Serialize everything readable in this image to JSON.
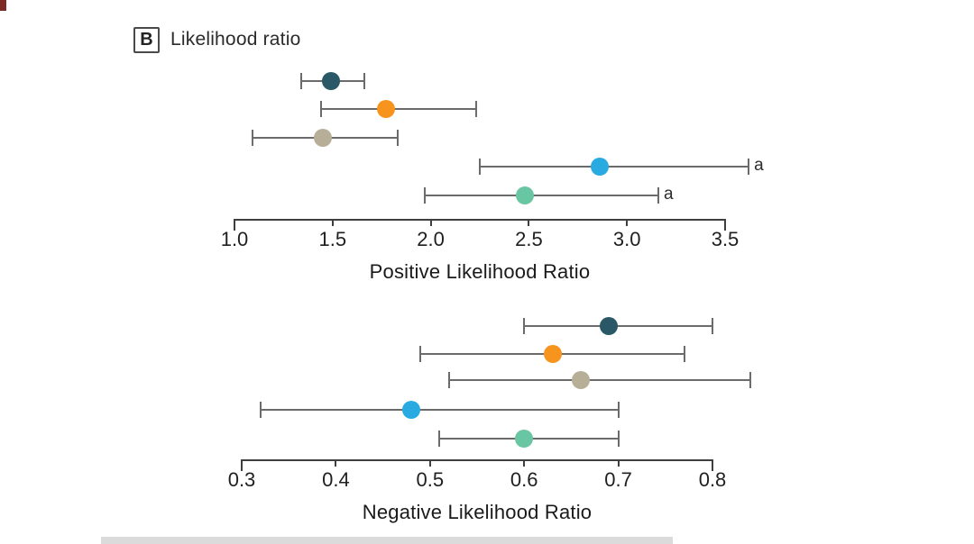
{
  "panel": {
    "tag": "B",
    "title": "Likelihood ratio"
  },
  "styles": {
    "background": "#ffffff",
    "ci_line_color": "#6b6b6b",
    "axis_color": "#3f3f3f",
    "text_color": "#1f1f1f",
    "corner_artifact_color": "#7e2b25",
    "bottom_band_color": "#dbdbdb"
  },
  "chart_data": [
    {
      "type": "scatter",
      "subtype": "forest-dot-ci",
      "xlabel": "Positive Likelihood Ratio",
      "xlim": [
        1.0,
        3.5
      ],
      "xticks": [
        1.0,
        1.5,
        2.0,
        2.5,
        3.0,
        3.5
      ],
      "xtick_labels": [
        "1.0",
        "1.5",
        "2.0",
        "2.5",
        "3.0",
        "3.5"
      ],
      "grid": false,
      "legend": "none",
      "series": [
        {
          "name": "dark-blue",
          "color": "#2A5866",
          "value": 1.49,
          "ci_low": 1.34,
          "ci_high": 1.66,
          "annotation": ""
        },
        {
          "name": "orange",
          "color": "#F7941E",
          "value": 1.77,
          "ci_low": 1.44,
          "ci_high": 2.23,
          "annotation": ""
        },
        {
          "name": "tan",
          "color": "#B7AE98",
          "value": 1.45,
          "ci_low": 1.09,
          "ci_high": 1.83,
          "annotation": ""
        },
        {
          "name": "light-blue",
          "color": "#29ABE2",
          "value": 2.86,
          "ci_low": 2.25,
          "ci_high": 3.62,
          "annotation": "a"
        },
        {
          "name": "green",
          "color": "#69C6A2",
          "value": 2.48,
          "ci_low": 1.97,
          "ci_high": 3.16,
          "annotation": "a"
        }
      ]
    },
    {
      "type": "scatter",
      "subtype": "forest-dot-ci",
      "xlabel": "Negative Likelihood Ratio",
      "xlim": [
        0.3,
        0.8
      ],
      "xticks": [
        0.3,
        0.4,
        0.5,
        0.6,
        0.7,
        0.8
      ],
      "xtick_labels": [
        "0.3",
        "0.4",
        "0.5",
        "0.6",
        "0.7",
        "0.8"
      ],
      "grid": false,
      "legend": "none",
      "series": [
        {
          "name": "dark-blue",
          "color": "#2A5866",
          "value": 0.69,
          "ci_low": 0.6,
          "ci_high": 0.8,
          "annotation": ""
        },
        {
          "name": "orange",
          "color": "#F7941E",
          "value": 0.63,
          "ci_low": 0.49,
          "ci_high": 0.77,
          "annotation": ""
        },
        {
          "name": "tan",
          "color": "#B7AE98",
          "value": 0.66,
          "ci_low": 0.52,
          "ci_high": 0.84,
          "annotation": ""
        },
        {
          "name": "light-blue",
          "color": "#29ABE2",
          "value": 0.48,
          "ci_low": 0.32,
          "ci_high": 0.7,
          "annotation": ""
        },
        {
          "name": "green",
          "color": "#69C6A2",
          "value": 0.6,
          "ci_low": 0.51,
          "ci_high": 0.7,
          "annotation": ""
        }
      ]
    }
  ]
}
